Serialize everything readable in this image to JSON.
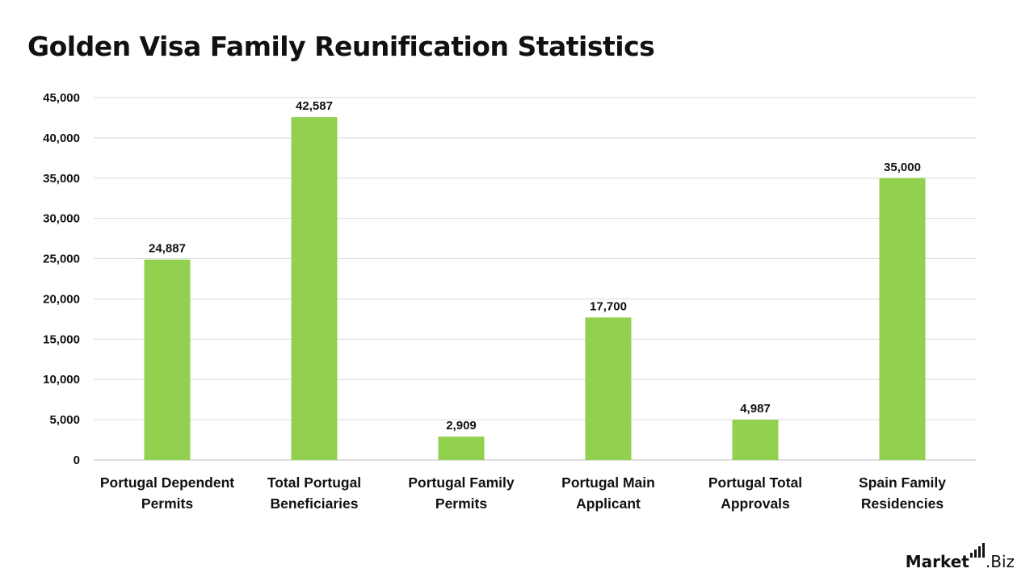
{
  "title": "Golden Visa Family Reunification Statistics",
  "brand": {
    "name_bold": "Market",
    "name_rest": ".Biz"
  },
  "colors": {
    "bar": "#92d050",
    "grid": "#d9d9d9",
    "text": "#111111"
  },
  "chart_data": {
    "type": "bar",
    "title": "Golden Visa Family Reunification Statistics",
    "categories": [
      [
        "Portugal Dependent",
        "Permits"
      ],
      [
        "Total Portugal",
        "Beneficiaries"
      ],
      [
        "Portugal Family",
        "Permits"
      ],
      [
        "Portugal Main",
        "Applicant"
      ],
      [
        "Portugal Total",
        "Approvals"
      ],
      [
        "Spain Family",
        "Residencies"
      ]
    ],
    "values": [
      24887,
      42587,
      2909,
      17700,
      4987,
      35000
    ],
    "value_labels": [
      "24,887",
      "42,587",
      "2,909",
      "17,700",
      "4,987",
      "35,000"
    ],
    "ylim": [
      0,
      45000
    ],
    "yticks": [
      0,
      5000,
      10000,
      15000,
      20000,
      25000,
      30000,
      35000,
      40000,
      45000
    ],
    "ytick_labels": [
      "0",
      "5,000",
      "10,000",
      "15,000",
      "20,000",
      "25,000",
      "30,000",
      "35,000",
      "40,000",
      "45,000"
    ],
    "grid": true,
    "legend": "none"
  }
}
